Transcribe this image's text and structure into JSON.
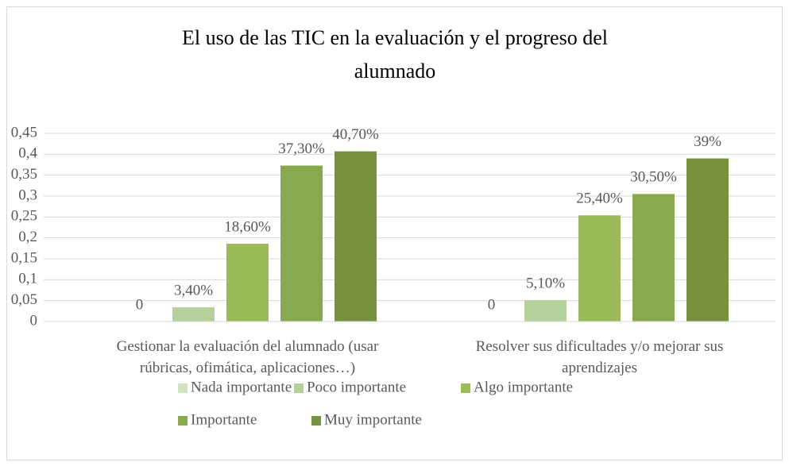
{
  "chart_data": {
    "type": "bar",
    "title": "El uso de las TIC en la evaluación y el progreso del\nalumnado",
    "categories": [
      "Gestionar la evaluación del alumnado (usar\nrúbricas, ofimática, aplicaciones…)",
      "Resolver sus dificultades y/o mejorar sus\naprendizajes"
    ],
    "series": [
      {
        "name": "Nada importante",
        "color": "#d3e3bd",
        "values": [
          0,
          0
        ],
        "value_labels": [
          "0",
          "0"
        ]
      },
      {
        "name": "Poco importante",
        "color": "#b5d09a",
        "values": [
          0.034,
          0.051
        ],
        "value_labels": [
          "3,40%",
          "5,10%"
        ]
      },
      {
        "name": "Algo importante",
        "color": "#9bbb59",
        "values": [
          0.186,
          0.254
        ],
        "value_labels": [
          "18,60%",
          "25,40%"
        ]
      },
      {
        "name": "Importante",
        "color": "#89a94e",
        "values": [
          0.373,
          0.305
        ],
        "value_labels": [
          "37,30%",
          "30,50%"
        ]
      },
      {
        "name": "Muy importante",
        "color": "#76923c",
        "values": [
          0.407,
          0.39
        ],
        "value_labels": [
          "40,70%",
          "39%"
        ]
      }
    ],
    "ylim": [
      0,
      0.45
    ],
    "yticks": [
      0,
      {
        "value": 0.05,
        "label": "0,05"
      },
      {
        "value": 0.1,
        "label": "0,1"
      },
      {
        "value": 0.15,
        "label": "0,15"
      },
      {
        "value": 0.2,
        "label": "0,2"
      },
      {
        "value": 0.25,
        "label": "0,25"
      },
      {
        "value": 0.3,
        "label": "0,3"
      },
      {
        "value": 0.35,
        "label": "0,35"
      },
      {
        "value": 0.4,
        "label": "0,4"
      },
      {
        "value": 0.45,
        "label": "0,45"
      }
    ],
    "grid": true,
    "legend": "bottom"
  }
}
